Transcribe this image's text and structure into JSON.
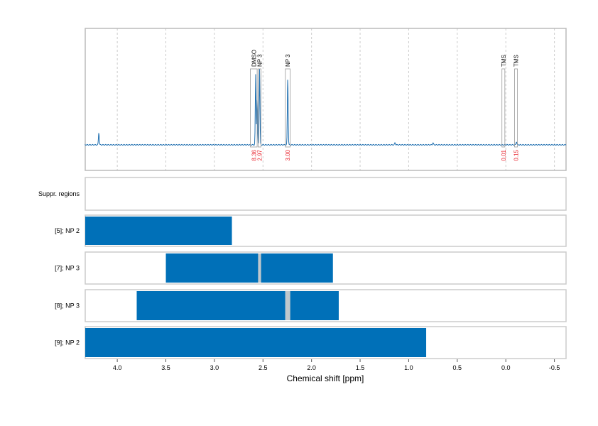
{
  "chart_data": {
    "type": "nmr-spectrum-with-range-bars",
    "xlabel": "Chemical shift [ppm]",
    "xlim": [
      4.33,
      -0.62
    ],
    "x_reversed": true,
    "xticks": [
      4.0,
      3.5,
      3.0,
      2.5,
      2.0,
      1.5,
      1.0,
      0.5,
      0.0,
      -0.5
    ],
    "xtick_labels": [
      "4.0",
      "3.5",
      "3.0",
      "2.5",
      "2.0",
      "1.5",
      "1.0",
      "0.5",
      "0.0",
      "-0.5"
    ],
    "grid": "vertical dashed",
    "colors": {
      "spectrum": "#1f6fb0",
      "bar": "#0070b8",
      "gap": "#c0c8cc",
      "integral": "#e8202a",
      "box": "#999999"
    },
    "spectrum_peaks": [
      {
        "ppm": 4.19,
        "height": 0.11
      },
      {
        "ppm": 2.575,
        "height": 0.62
      },
      {
        "ppm": 2.56,
        "height": 0.4
      },
      {
        "ppm": 2.535,
        "height": 0.67
      },
      {
        "ppm": 2.245,
        "height": 0.6
      },
      {
        "ppm": 1.14,
        "height": 0.02
      },
      {
        "ppm": 0.75,
        "height": 0.02
      },
      {
        "ppm": -0.11,
        "height": 0.03
      }
    ],
    "annotations": [
      {
        "label": "DMSO",
        "from": 2.63,
        "to": 2.56,
        "integral": "8.36"
      },
      {
        "label": "NP 3",
        "from": 2.55,
        "to": 2.52,
        "integral": "2.97"
      },
      {
        "label": "NP 3",
        "from": 2.27,
        "to": 2.22,
        "integral": "3.00"
      },
      {
        "label": "TMS",
        "from": 0.04,
        "to": 0.01,
        "integral": "0.01"
      },
      {
        "label": "TMS",
        "from": -0.09,
        "to": -0.12,
        "integral": "0.15"
      }
    ],
    "tracks": [
      {
        "label": "Suppr. regions",
        "bars": [],
        "gaps": []
      },
      {
        "label": "[5]; NP 2",
        "bars": [
          [
            4.33,
            2.82
          ]
        ],
        "gaps": []
      },
      {
        "label": "[7]; NP 3",
        "bars": [
          [
            3.5,
            2.55
          ],
          [
            2.52,
            1.78
          ]
        ],
        "gaps": [
          [
            2.55,
            2.52
          ]
        ]
      },
      {
        "label": "[8]; NP 3",
        "bars": [
          [
            3.8,
            2.27
          ],
          [
            2.22,
            1.72
          ]
        ],
        "gaps": [
          [
            2.27,
            2.22
          ]
        ]
      },
      {
        "label": "[9]; NP 2",
        "bars": [
          [
            4.33,
            0.82
          ]
        ],
        "gaps": []
      }
    ]
  }
}
